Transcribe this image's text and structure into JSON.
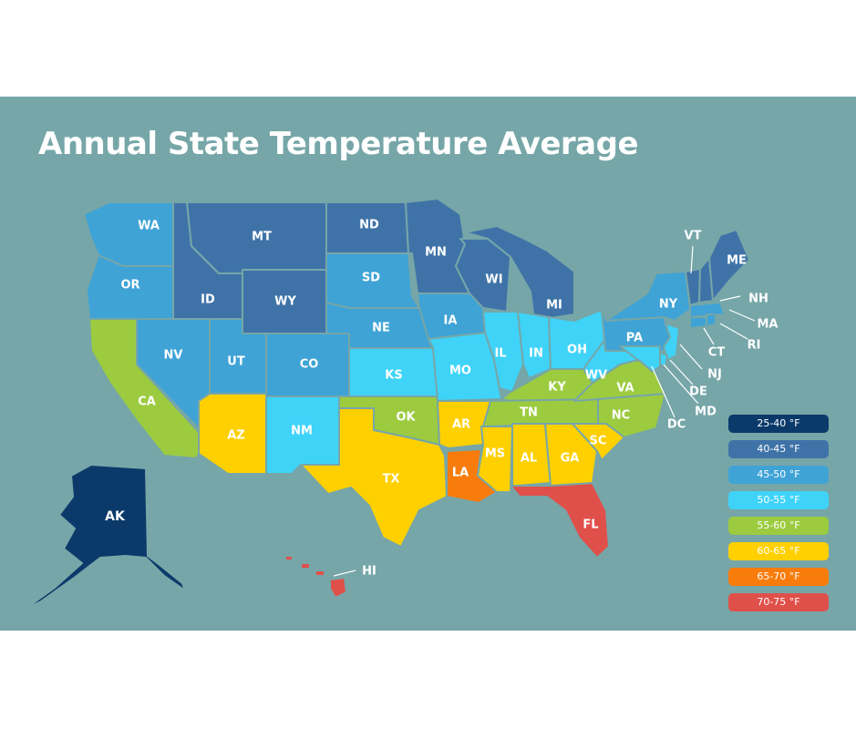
{
  "title": "Annual State Temperature Average",
  "colors": {
    "background": "#76a6a8",
    "band_25_40": "#0b3a6a",
    "band_40_45": "#3f73a8",
    "band_45_50": "#3fa3d6",
    "band_50_55": "#3fd3f8",
    "band_55_60": "#9ccb40",
    "band_60_65": "#fed000",
    "band_65_70": "#f87c0c",
    "band_70_75": "#e0504a"
  },
  "legend": [
    {
      "label": "25-40 °F",
      "color": "#0b3a6a"
    },
    {
      "label": "40-45 °F",
      "color": "#3f73a8"
    },
    {
      "label": "45-50 °F",
      "color": "#3fa3d6"
    },
    {
      "label": "50-55 °F",
      "color": "#3fd3f8"
    },
    {
      "label": "55-60 °F",
      "color": "#9ccb40"
    },
    {
      "label": "60-65 °F",
      "color": "#fed000"
    },
    {
      "label": "65-70 °F",
      "color": "#f87c0c"
    },
    {
      "label": "70-75 °F",
      "color": "#e0504a"
    }
  ],
  "states": {
    "AK": {
      "label": "AK",
      "band": "25-40 °F"
    },
    "WA": {
      "label": "WA",
      "band": "45-50 °F"
    },
    "OR": {
      "label": "OR",
      "band": "45-50 °F"
    },
    "CA": {
      "label": "CA",
      "band": "55-60 °F"
    },
    "NV": {
      "label": "NV",
      "band": "45-50 °F"
    },
    "ID": {
      "label": "ID",
      "band": "40-45 °F"
    },
    "MT": {
      "label": "MT",
      "band": "40-45 °F"
    },
    "WY": {
      "label": "WY",
      "band": "40-45 °F"
    },
    "UT": {
      "label": "UT",
      "band": "45-50 °F"
    },
    "CO": {
      "label": "CO",
      "band": "45-50 °F"
    },
    "AZ": {
      "label": "AZ",
      "band": "60-65 °F"
    },
    "NM": {
      "label": "NM",
      "band": "50-55 °F"
    },
    "ND": {
      "label": "ND",
      "band": "40-45 °F"
    },
    "SD": {
      "label": "SD",
      "band": "45-50 °F"
    },
    "NE": {
      "label": "NE",
      "band": "45-50 °F"
    },
    "KS": {
      "label": "KS",
      "band": "50-55 °F"
    },
    "OK": {
      "label": "OK",
      "band": "55-60 °F"
    },
    "TX": {
      "label": "TX",
      "band": "60-65 °F"
    },
    "MN": {
      "label": "MN",
      "band": "40-45 °F"
    },
    "IA": {
      "label": "IA",
      "band": "45-50 °F"
    },
    "MO": {
      "label": "MO",
      "band": "50-55 °F"
    },
    "AR": {
      "label": "AR",
      "band": "60-65 °F"
    },
    "LA": {
      "label": "LA",
      "band": "65-70 °F"
    },
    "WI": {
      "label": "WI",
      "band": "40-45 °F"
    },
    "IL": {
      "label": "IL",
      "band": "50-55 °F"
    },
    "MI": {
      "label": "MI",
      "band": "40-45 °F"
    },
    "IN": {
      "label": "IN",
      "band": "50-55 °F"
    },
    "OH": {
      "label": "OH",
      "band": "50-55 °F"
    },
    "KY": {
      "label": "KY",
      "band": "55-60 °F"
    },
    "TN": {
      "label": "TN",
      "band": "55-60 °F"
    },
    "MS": {
      "label": "MS",
      "band": "60-65 °F"
    },
    "AL": {
      "label": "AL",
      "band": "60-65 °F"
    },
    "GA": {
      "label": "GA",
      "band": "60-65 °F"
    },
    "FL": {
      "label": "FL",
      "band": "70-75 °F"
    },
    "SC": {
      "label": "SC",
      "band": "60-65 °F"
    },
    "NC": {
      "label": "NC",
      "band": "55-60 °F"
    },
    "VA": {
      "label": "VA",
      "band": "55-60 °F"
    },
    "WV": {
      "label": "WV",
      "band": "50-55 °F"
    },
    "PA": {
      "label": "PA",
      "band": "45-50 °F"
    },
    "NY": {
      "label": "NY",
      "band": "45-50 °F"
    },
    "VT": {
      "label": "VT",
      "band": "40-45 °F"
    },
    "NH": {
      "label": "NH",
      "band": "40-45 °F"
    },
    "ME": {
      "label": "ME",
      "band": "40-45 °F"
    },
    "MA": {
      "label": "MA",
      "band": "45-50 °F"
    },
    "RI": {
      "label": "RI",
      "band": "45-50 °F"
    },
    "CT": {
      "label": "CT",
      "band": "45-50 °F"
    },
    "NJ": {
      "label": "NJ",
      "band": "50-55 °F"
    },
    "DE": {
      "label": "DE",
      "band": "50-55 °F"
    },
    "MD": {
      "label": "MD",
      "band": "50-55 °F"
    },
    "DC": {
      "label": "DC",
      "band": "50-55 °F"
    },
    "HI": {
      "label": "HI",
      "band": "70-75 °F"
    }
  }
}
